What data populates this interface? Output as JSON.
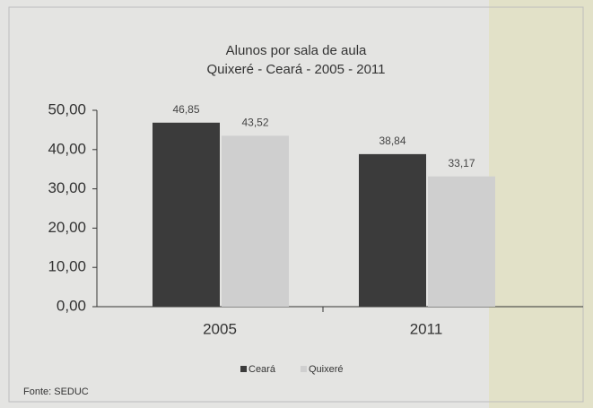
{
  "chart_data": {
    "type": "bar",
    "title": "Alunos por sala de aula",
    "subtitle": "Quixeré - Ceará - 2005 - 2011",
    "categories": [
      "2005",
      "2011"
    ],
    "series": [
      {
        "name": "Ceará",
        "color": "#3b3b3b",
        "values": [
          46.85,
          38.84
        ],
        "value_labels": [
          "46,85",
          "38,84"
        ]
      },
      {
        "name": "Quixeré",
        "color": "#cfcfcf",
        "values": [
          43.52,
          33.17
        ],
        "value_labels": [
          "43,52",
          "33,17"
        ]
      }
    ],
    "ylim": [
      0,
      50
    ],
    "yticks": [
      {
        "value": 0,
        "label": "0,00"
      },
      {
        "value": 10,
        "label": "10,00"
      },
      {
        "value": 20,
        "label": "20,00"
      },
      {
        "value": 30,
        "label": "30,00"
      },
      {
        "value": 40,
        "label": "40,00"
      },
      {
        "value": 50,
        "label": "50,00"
      }
    ],
    "legend": "bottom",
    "source": "Fonte: SEDUC"
  }
}
